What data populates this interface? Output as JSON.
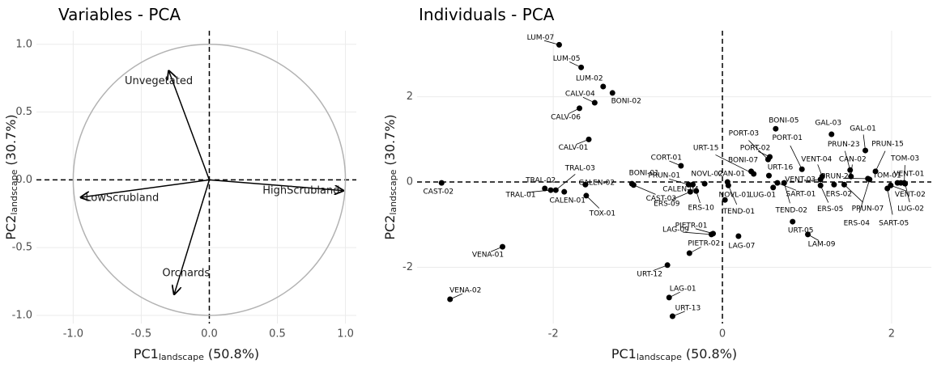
{
  "chart_data": [
    {
      "type": "vectors",
      "title": "Variables - PCA",
      "x_title": {
        "main": "PC1",
        "sub": "landscape",
        "suffix": "(50.8%)"
      },
      "y_title": {
        "main": "PC2",
        "sub": "landscape",
        "suffix": "(30.7%)"
      },
      "xlim": [
        -1.27,
        1.08
      ],
      "ylim": [
        -1.06,
        1.1
      ],
      "xticks": [
        {
          "value": -1,
          "label": "-1.0"
        },
        -0.5,
        {
          "value": 0,
          "label": "0.0"
        },
        0.5,
        {
          "value": 1,
          "label": "1.0"
        }
      ],
      "yticks": [
        {
          "value": -1,
          "label": "-1.0"
        },
        -0.5,
        {
          "value": 0,
          "label": "0.0"
        },
        0.5,
        {
          "value": 1,
          "label": "1.0"
        }
      ],
      "grid": true,
      "vectors": [
        {
          "label": "Unvegetated",
          "x": -0.3,
          "y": 0.81
        },
        {
          "label": "LowScrubland",
          "x": -0.95,
          "y": -0.13
        },
        {
          "label": "HighScrubland",
          "x": 0.99,
          "y": -0.08
        },
        {
          "label": "Orchards",
          "x": -0.26,
          "y": -0.85
        }
      ]
    },
    {
      "type": "scatter",
      "title": "Individuals - PCA",
      "x_title": {
        "main": "PC1",
        "sub": "landscape",
        "suffix": "(50.8%)"
      },
      "y_title": {
        "main": "PC2",
        "sub": "landscape",
        "suffix": "(30.7%)"
      },
      "xlim": [
        -3.61,
        2.47
      ],
      "ylim": [
        -3.32,
        3.55
      ],
      "xticks": [
        -2,
        0,
        2
      ],
      "yticks": [
        -2,
        0,
        2
      ],
      "grid": true,
      "points": [
        {
          "label": "LUM-07",
          "x": -1.93,
          "y": 3.22
        },
        {
          "label": "LUM-05",
          "x": -1.67,
          "y": 2.69
        },
        {
          "label": "LUM-02",
          "x": -1.41,
          "y": 2.24
        },
        {
          "label": "BONI-02",
          "x": -1.3,
          "y": 2.09
        },
        {
          "label": "CALV-04",
          "x": -1.51,
          "y": 1.86
        },
        {
          "label": "CALV-06",
          "x": -1.69,
          "y": 1.73
        },
        {
          "label": "CALV-01",
          "x": -1.58,
          "y": 1.0
        },
        {
          "label": "CORT-01",
          "x": -0.49,
          "y": 0.38
        },
        {
          "label": "BONI-01",
          "x": -1.07,
          "y": -0.04
        },
        {
          "label": "CAST-03",
          "x": -1.05,
          "y": -0.07
        },
        {
          "label": "PRUN-01",
          "x": -0.4,
          "y": -0.06
        },
        {
          "label": "NOVL-02",
          "x": -0.21,
          "y": -0.04
        },
        {
          "label": "CAN-01",
          "x": 0.06,
          "y": 0.0
        },
        {
          "label": "CALEN-04",
          "x": -0.35,
          "y": -0.06
        },
        {
          "label": "ERS-09",
          "x": -0.38,
          "y": -0.23
        },
        {
          "label": "ERS-10",
          "x": -0.31,
          "y": -0.21
        },
        {
          "label": "NOVL-01",
          "x": 0.03,
          "y": -0.42
        },
        {
          "label": "TEND-01",
          "x": 0.07,
          "y": -0.08
        },
        {
          "label": "BONI-07",
          "x": 0.34,
          "y": 0.25
        },
        {
          "label": "URT-15",
          "x": 0.37,
          "y": 0.19
        },
        {
          "label": "PORT-03",
          "x": 0.54,
          "y": 0.53
        },
        {
          "label": "PORT-02",
          "x": 0.56,
          "y": 0.59
        },
        {
          "label": "URT-16",
          "x": 0.55,
          "y": 0.15
        },
        {
          "label": "LUG-01",
          "x": 0.6,
          "y": -0.13
        },
        {
          "label": "TEND-02",
          "x": 0.73,
          "y": -0.02
        },
        {
          "label": "SART-01",
          "x": 0.65,
          "y": -0.02
        },
        {
          "label": "VENT-03",
          "x": 1.16,
          "y": 0.06
        },
        {
          "label": "BONI-05",
          "x": 0.63,
          "y": 1.25
        },
        {
          "label": "GAL-03",
          "x": 1.29,
          "y": 1.12
        },
        {
          "label": "PORT-01",
          "x": 0.94,
          "y": 0.3
        },
        {
          "label": "GAL-01",
          "x": 1.69,
          "y": 0.74
        },
        {
          "label": "PRUN-15",
          "x": 1.81,
          "y": 0.25
        },
        {
          "label": "PRUN-23",
          "x": 1.51,
          "y": 0.28
        },
        {
          "label": "CAN-02",
          "x": 1.52,
          "y": 0.13
        },
        {
          "label": "VENT-04",
          "x": 1.18,
          "y": 0.13
        },
        {
          "label": "PRUN-21",
          "x": 1.72,
          "y": 0.08
        },
        {
          "label": "TOM-03",
          "x": 2.15,
          "y": -0.02
        },
        {
          "label": "TOM-01",
          "x": 2.07,
          "y": -0.02
        },
        {
          "label": "VENT-01",
          "x": 2.11,
          "y": -0.02
        },
        {
          "label": "ERS-02",
          "x": 1.32,
          "y": -0.06
        },
        {
          "label": "ERS-05",
          "x": 1.16,
          "y": -0.08
        },
        {
          "label": "PRUN-07",
          "x": 1.44,
          "y": -0.06
        },
        {
          "label": "ERS-04",
          "x": 1.74,
          "y": 0.06
        },
        {
          "label": "SART-05",
          "x": 1.95,
          "y": -0.15
        },
        {
          "label": "VENT-02",
          "x": 1.99,
          "y": -0.08
        },
        {
          "label": "LUG-02",
          "x": 2.16,
          "y": -0.04
        },
        {
          "label": "URT-05",
          "x": 0.83,
          "y": -0.93
        },
        {
          "label": "LAM-09",
          "x": 1.01,
          "y": -1.23
        },
        {
          "label": "LAG-07",
          "x": 0.19,
          "y": -1.27
        },
        {
          "label": "PIETR-01",
          "x": -0.11,
          "y": -1.21
        },
        {
          "label": "LAG-09",
          "x": -0.13,
          "y": -1.23
        },
        {
          "label": "PIETR-02",
          "x": -0.39,
          "y": -1.67
        },
        {
          "label": "URT-12",
          "x": -0.65,
          "y": -1.95
        },
        {
          "label": "LAG-01",
          "x": -0.63,
          "y": -2.71
        },
        {
          "label": "URT-13",
          "x": -0.59,
          "y": -3.15
        },
        {
          "label": "VENA-01",
          "x": -2.6,
          "y": -1.52
        },
        {
          "label": "VENA-02",
          "x": -3.22,
          "y": -2.75
        },
        {
          "label": "CAST-02",
          "x": -3.32,
          "y": -0.02
        },
        {
          "label": "TRAL-02",
          "x": -2.1,
          "y": -0.15
        },
        {
          "label": "TRAL-03",
          "x": -1.97,
          "y": -0.19
        },
        {
          "label": "TRAL-01",
          "x": -2.03,
          "y": -0.19
        },
        {
          "label": "CALEN-01",
          "x": -1.87,
          "y": -0.23
        },
        {
          "label": "CALEN-02",
          "x": -1.62,
          "y": -0.06
        },
        {
          "label": "TOX-01",
          "x": -1.61,
          "y": -0.32
        }
      ]
    }
  ]
}
